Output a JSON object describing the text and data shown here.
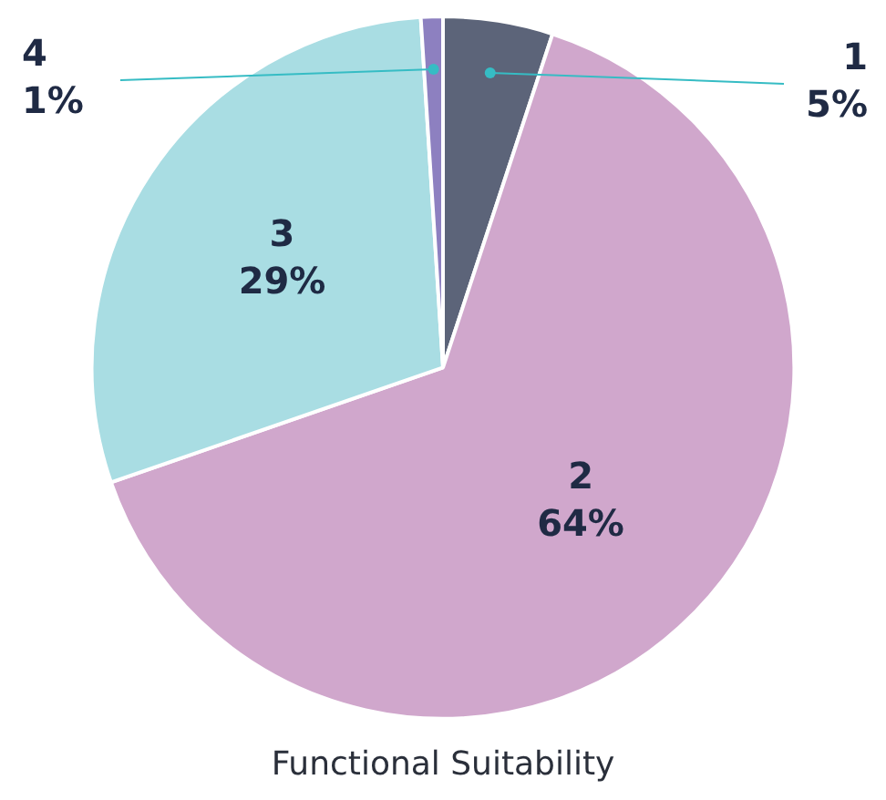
{
  "chart_data": {
    "type": "pie",
    "title": "Functional Suitability",
    "categories": [
      "1",
      "2",
      "3",
      "4"
    ],
    "values": [
      5,
      64,
      29,
      1
    ],
    "colors": [
      "#5c6479",
      "#d0a7cc",
      "#a9dde3",
      "#8d80c0"
    ],
    "value_labels": [
      "5%",
      "64%",
      "29%",
      "1%"
    ],
    "legend": false
  }
}
